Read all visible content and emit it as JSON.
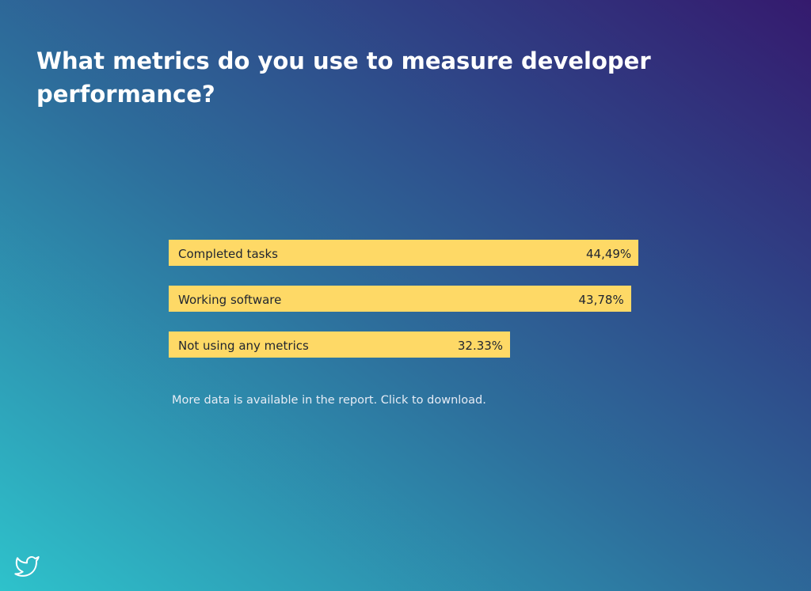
{
  "title": "What metrics do you use to measure developer performance?",
  "footnote": "More data is available in the report. Click to download.",
  "icons": {
    "share": "twitter-bird-icon"
  },
  "colors": {
    "bar": "#fed966",
    "text": "#1f2430"
  },
  "chart_data": {
    "type": "bar",
    "orientation": "horizontal",
    "title": "What metrics do you use to measure developer performance?",
    "categories": [
      "Completed tasks",
      "Working software",
      "Not using any metrics"
    ],
    "values": [
      44.49,
      43.78,
      32.33
    ],
    "value_labels": [
      "44,49%",
      "43,78%",
      "32.33%"
    ],
    "unit": "%",
    "xlim": [
      0,
      45
    ],
    "grid": false,
    "legend": "none"
  }
}
